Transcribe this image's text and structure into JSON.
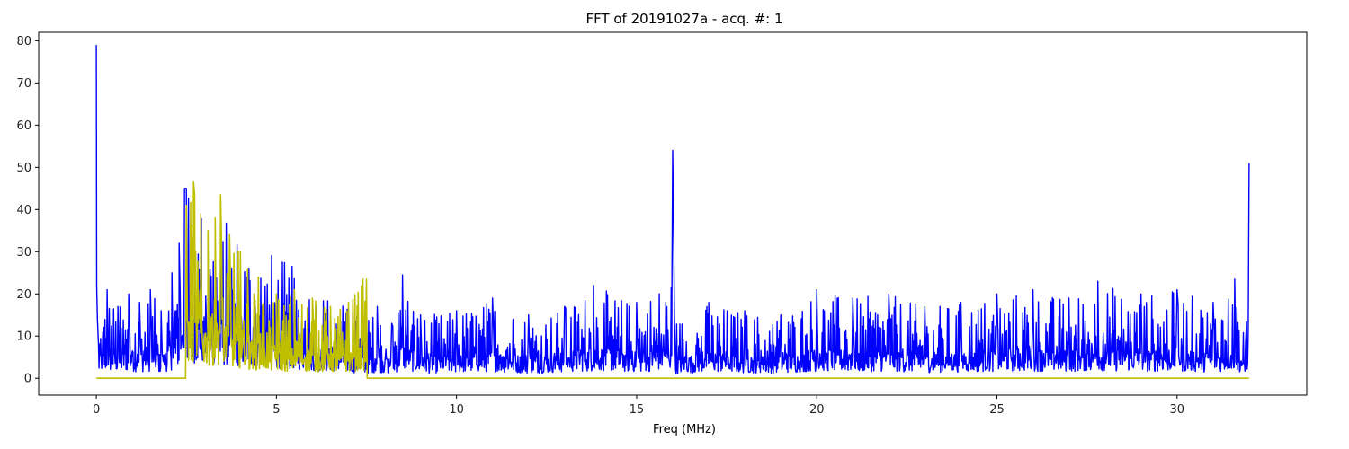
{
  "chart_data": {
    "type": "line",
    "title": "FFT of 20191027a - acq. #: 1",
    "xlabel": "Freq (MHz)",
    "ylabel": "",
    "xlim": [
      -1.6,
      33.6
    ],
    "ylim": [
      -4,
      82
    ],
    "xticks": [
      0,
      5,
      10,
      15,
      20,
      25,
      30
    ],
    "yticks": [
      0,
      10,
      20,
      30,
      40,
      50,
      60,
      70,
      80
    ],
    "grid": false,
    "legend": false,
    "series": [
      {
        "color": "#0000ff",
        "x": [
          0,
          0.01,
          0.03,
          0.3,
          0.6,
          0.9,
          1.2,
          1.5,
          1.8,
          2.1,
          2.3,
          2.45,
          2.5,
          7.5,
          7.8,
          8.2,
          8.5,
          9.0,
          10,
          11,
          12,
          13,
          13.8,
          15,
          15.98,
          16.0,
          16.02,
          16.05,
          17,
          18,
          19,
          20,
          21,
          22,
          23,
          24,
          25,
          26,
          27,
          27.8,
          29,
          30,
          31,
          31.6,
          31.9,
          32.0
        ],
        "y": [
          79,
          22,
          14,
          21,
          17,
          20,
          18,
          21,
          16,
          25,
          32,
          45,
          45,
          14,
          17,
          13,
          24.5,
          15,
          16,
          19,
          15,
          17,
          22,
          18,
          25,
          54,
          39,
          14,
          18,
          16,
          15,
          21,
          19,
          20,
          17,
          18,
          20,
          21,
          19,
          23,
          20,
          21,
          18,
          23.5,
          8,
          51
        ]
      },
      {
        "color": "#bfbf00",
        "x": [
          0,
          2.48,
          2.5,
          2.7,
          2.9,
          3.1,
          3.3,
          3.45,
          3.7,
          4.0,
          4.2,
          4.5,
          5.0,
          5.5,
          6.0,
          6.5,
          7.0,
          7.4,
          7.5,
          7.52,
          32.0
        ],
        "y": [
          0,
          0,
          41,
          46.5,
          39,
          35,
          38,
          43.5,
          34,
          30,
          26,
          24,
          20,
          21,
          19,
          17,
          18,
          23.5,
          23.5,
          0,
          0
        ]
      }
    ]
  }
}
